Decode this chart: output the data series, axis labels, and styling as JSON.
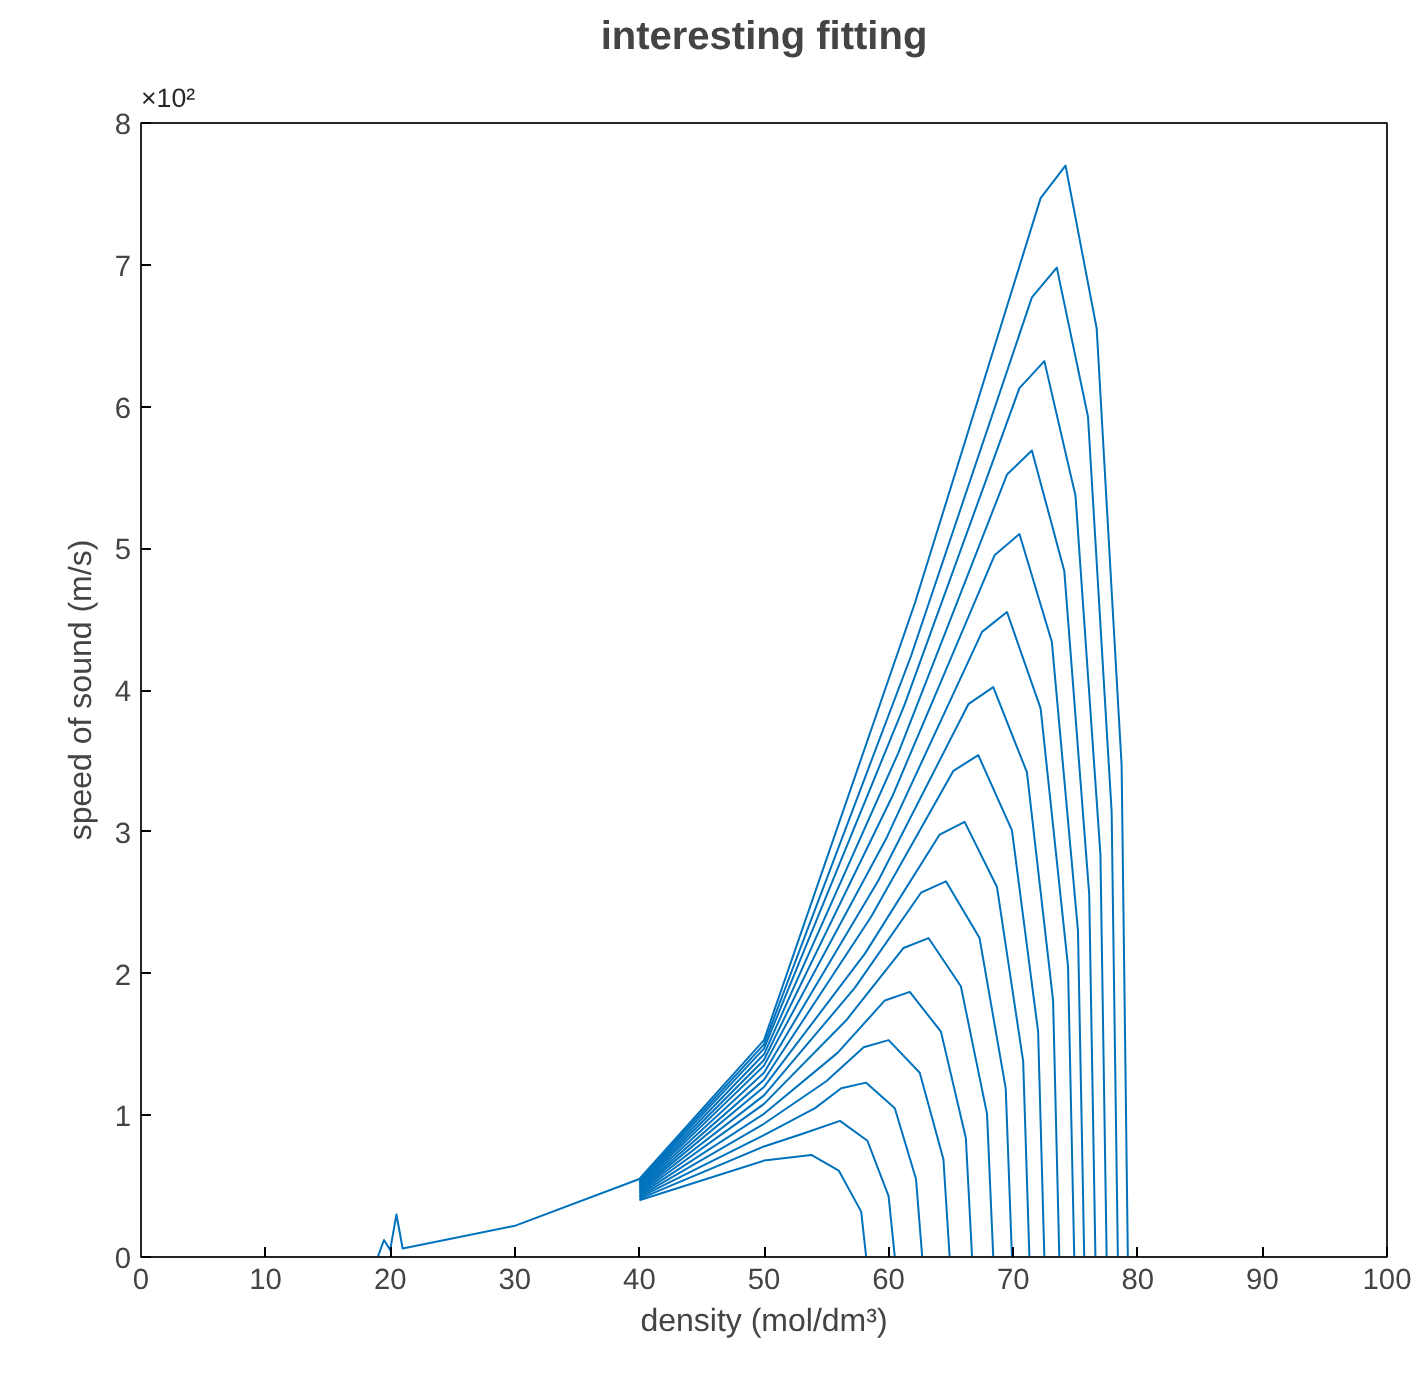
{
  "chart_data": {
    "type": "line",
    "title": "interesting fitting",
    "xlabel": "density (mol/dm³)",
    "ylabel": "speed of sound (m/s)",
    "annotations": [
      "×10²"
    ],
    "xlim": [
      0,
      100
    ],
    "ylim": [
      0,
      8
    ],
    "xticks": [
      0,
      10,
      20,
      30,
      40,
      50,
      60,
      70,
      80,
      90,
      100
    ],
    "yticks": [
      0,
      1,
      2,
      3,
      4,
      5,
      6,
      7,
      8
    ],
    "grid": false,
    "marker": "none",
    "line_style": "solid",
    "series": [
      {
        "color": "#0072bd",
        "x": [
          40,
          50,
          51.9,
          53.8,
          56.0,
          57.8,
          58.2,
          100
        ],
        "values": [
          0.4,
          0.68,
          0.7,
          0.72,
          0.61,
          0.32,
          0,
          0
        ]
      },
      {
        "color": "#0072bd",
        "x": [
          40,
          50,
          53.1,
          56.1,
          58.3,
          60.0,
          60.5
        ],
        "values": [
          0.41,
          0.78,
          0.87,
          0.96,
          0.82,
          0.43,
          0
        ]
      },
      {
        "color": "#0072bd",
        "x": [
          40,
          50,
          54.1,
          56.2,
          58.2,
          60.5,
          62.2,
          62.7
        ],
        "values": [
          0.42,
          0.86,
          1.05,
          1.19,
          1.23,
          1.05,
          0.55,
          0
        ]
      },
      {
        "color": "#0072bd",
        "x": [
          40,
          50,
          55.0,
          58.0,
          60.0,
          62.5,
          64.4,
          64.9
        ],
        "values": [
          0.43,
          0.94,
          1.24,
          1.48,
          1.53,
          1.3,
          0.69,
          0
        ]
      },
      {
        "color": "#0072bd",
        "x": [
          40,
          50,
          55.9,
          59.7,
          61.7,
          64.2,
          66.2,
          66.7
        ],
        "values": [
          0.44,
          1.01,
          1.44,
          1.81,
          1.87,
          1.59,
          0.84,
          0
        ]
      },
      {
        "color": "#0072bd",
        "x": [
          40,
          50,
          56.6,
          61.2,
          63.2,
          65.8,
          67.9,
          68.4
        ],
        "values": [
          0.45,
          1.08,
          1.67,
          2.18,
          2.25,
          1.91,
          1.01,
          0
        ]
      },
      {
        "color": "#0072bd",
        "x": [
          40,
          50,
          57.3,
          62.6,
          64.6,
          67.3,
          69.4,
          69.9
        ],
        "values": [
          0.46,
          1.14,
          1.9,
          2.57,
          2.65,
          2.25,
          1.19,
          0
        ]
      },
      {
        "color": "#0072bd",
        "x": [
          40,
          50,
          58.1,
          64.1,
          66.1,
          68.7,
          70.8,
          71.3
        ],
        "values": [
          0.47,
          1.2,
          2.14,
          2.98,
          3.07,
          2.61,
          1.38,
          0
        ]
      },
      {
        "color": "#0072bd",
        "x": [
          40,
          50,
          58.6,
          65.2,
          67.2,
          69.9,
          72.0,
          72.5
        ],
        "values": [
          0.48,
          1.25,
          2.4,
          3.43,
          3.54,
          3.01,
          1.59,
          0
        ]
      },
      {
        "color": "#0072bd",
        "x": [
          40,
          50,
          59.2,
          66.4,
          68.4,
          71.1,
          73.2,
          73.7
        ],
        "values": [
          0.49,
          1.3,
          2.66,
          3.9,
          4.02,
          3.42,
          1.81,
          0
        ]
      },
      {
        "color": "#0072bd",
        "x": [
          40,
          50,
          59.8,
          67.5,
          69.5,
          72.2,
          74.4,
          74.9
        ],
        "values": [
          0.5,
          1.35,
          2.95,
          4.41,
          4.55,
          3.87,
          2.05,
          0
        ]
      },
      {
        "color": "#0072bd",
        "x": [
          40,
          50,
          60.3,
          68.5,
          70.5,
          73.1,
          75.2,
          75.7
        ],
        "values": [
          0.51,
          1.39,
          3.25,
          4.95,
          5.1,
          4.34,
          2.3,
          0
        ]
      },
      {
        "color": "#0072bd",
        "x": [
          40,
          50,
          60.8,
          69.5,
          71.5,
          74.1,
          76.1,
          76.6
        ],
        "values": [
          0.52,
          1.43,
          3.56,
          5.52,
          5.69,
          4.84,
          2.56,
          0
        ]
      },
      {
        "color": "#0072bd",
        "x": [
          40,
          50,
          61.3,
          70.5,
          72.5,
          75.0,
          77.0,
          77.5
        ],
        "values": [
          0.53,
          1.47,
          3.9,
          6.13,
          6.32,
          5.37,
          2.84,
          0
        ]
      },
      {
        "color": "#0072bd",
        "x": [
          40,
          50,
          61.8,
          71.5,
          73.5,
          76.0,
          77.9,
          78.4
        ],
        "values": [
          0.54,
          1.5,
          4.24,
          6.77,
          6.98,
          5.93,
          3.14,
          0
        ]
      },
      {
        "color": "#0072bd",
        "x": [
          19,
          19.5,
          20,
          20.5,
          21,
          30,
          40,
          50,
          62.1,
          72.2,
          74.2,
          76.7,
          78.7,
          79.2
        ],
        "values": [
          0,
          0.12,
          0.05,
          0.3,
          0.06,
          0.22,
          0.55,
          1.53,
          4.61,
          7.47,
          7.7,
          6.55,
          3.47,
          0
        ]
      }
    ]
  }
}
